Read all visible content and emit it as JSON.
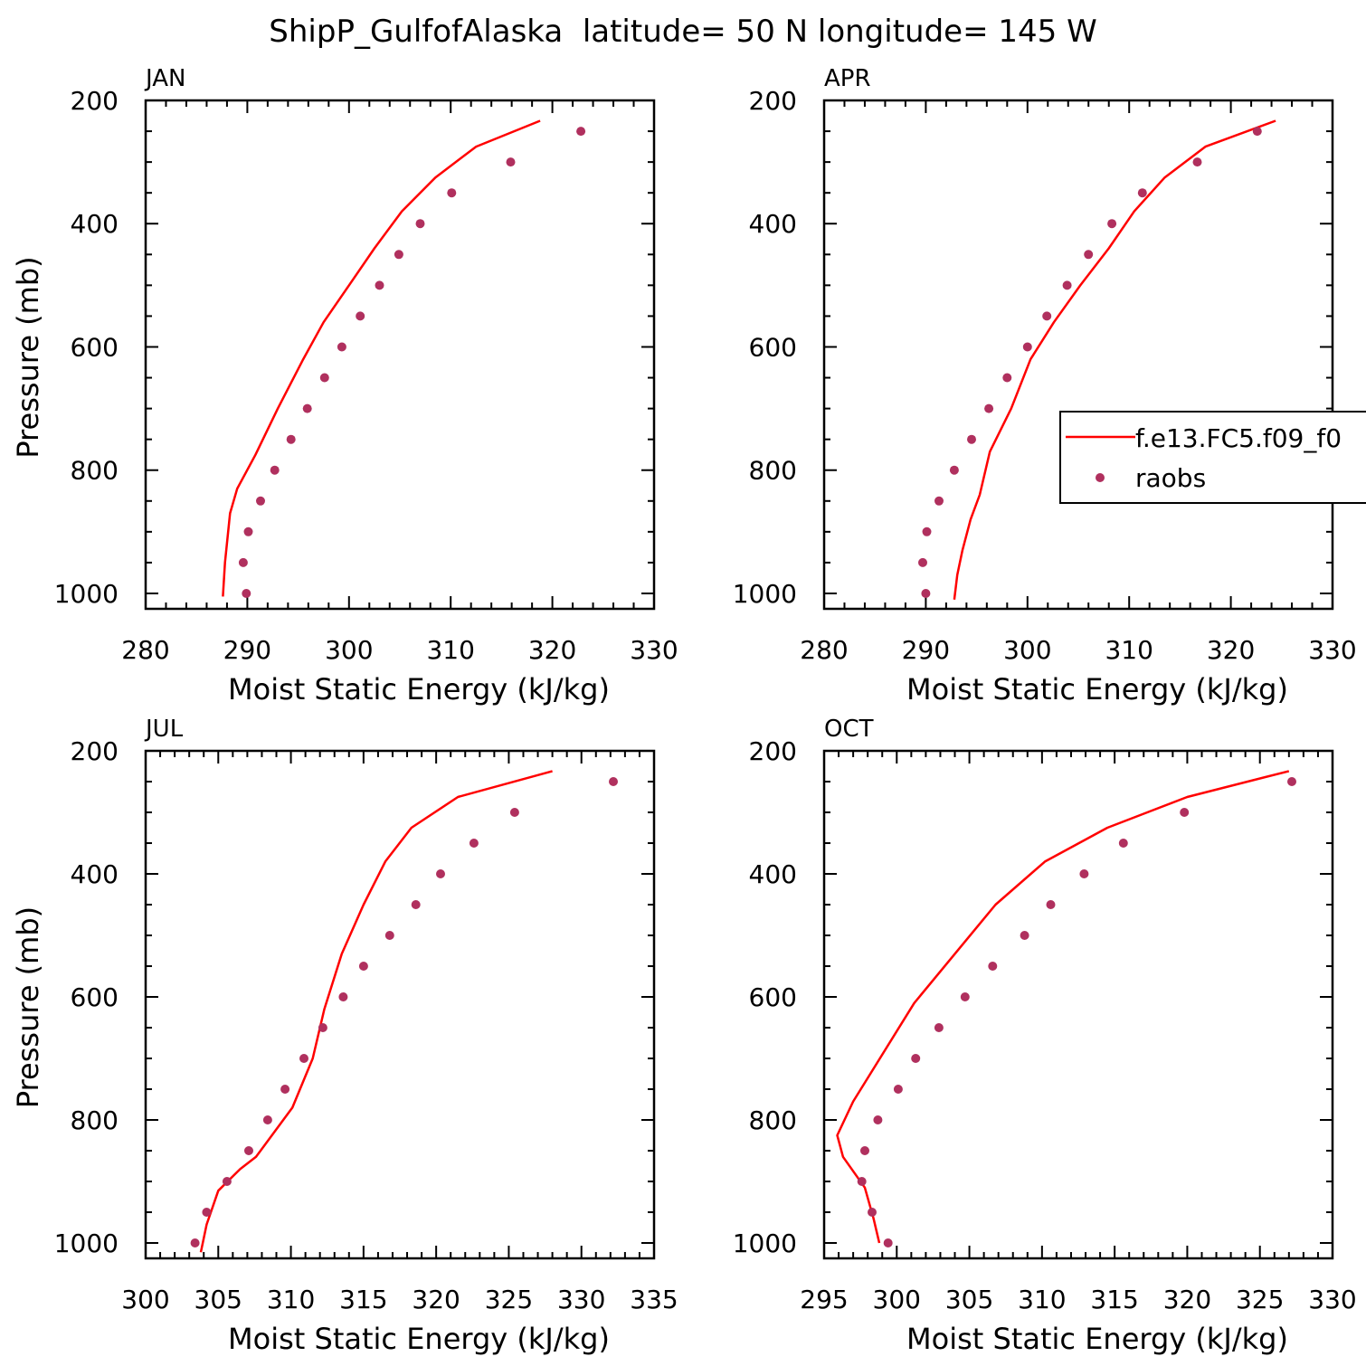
{
  "figure_title": "ShipP_GulfofAlaska  latitude= 50 N longitude= 145 W",
  "colors": {
    "model": "#ff0000",
    "obs": "#b0305e"
  },
  "legend": {
    "placement": "right, overlapping APR panel",
    "model_label": "f.e13.FC5.f09_f0",
    "obs_label": "raobs"
  },
  "chart_data": [
    {
      "type": "line+scatter",
      "panel": "JAN",
      "title": "JAN",
      "xlabel": "Moist Static Energy (kJ/kg)",
      "ylabel": "Pressure (mb)",
      "xlim": [
        280,
        330
      ],
      "ylim": [
        200,
        1025
      ],
      "yreversed": true,
      "xticks": [
        "280",
        "290",
        "300",
        "310",
        "320",
        "330"
      ],
      "yticks": [
        "200",
        "400",
        "600",
        "800",
        "1000"
      ],
      "series": [
        {
          "name": "f.e13.FC5.f09_f0",
          "kind": "line",
          "x": [
            318.8,
            312.5,
            308.5,
            305.2,
            302.5,
            300.0,
            297.5,
            295.5,
            293.0,
            290.8,
            289.0,
            288.3,
            287.8,
            287.6
          ],
          "y": [
            233,
            275,
            325,
            380,
            440,
            500,
            560,
            620,
            700,
            775,
            830,
            870,
            950,
            1005
          ]
        },
        {
          "name": "raobs",
          "kind": "scatter",
          "x": [
            322.8,
            315.9,
            310.1,
            307.0,
            304.9,
            303.0,
            301.1,
            299.3,
            297.6,
            295.9,
            294.3,
            292.7,
            291.3,
            290.1,
            289.6,
            289.9
          ],
          "y": [
            250,
            300,
            350,
            400,
            450,
            500,
            550,
            600,
            650,
            700,
            750,
            800,
            850,
            900,
            950,
            1000
          ]
        }
      ]
    },
    {
      "type": "line+scatter",
      "panel": "APR",
      "title": "APR",
      "xlabel": "Moist Static Energy (kJ/kg)",
      "ylabel": "",
      "xlim": [
        280,
        330
      ],
      "ylim": [
        200,
        1025
      ],
      "yreversed": true,
      "xticks": [
        "280",
        "290",
        "300",
        "310",
        "320",
        "330"
      ],
      "yticks": [
        "200",
        "400",
        "600",
        "800",
        "1000"
      ],
      "series": [
        {
          "name": "f.e13.FC5.f09_f0",
          "kind": "line",
          "x": [
            324.4,
            317.5,
            313.5,
            310.5,
            308.0,
            305.2,
            302.6,
            300.3,
            298.4,
            296.3,
            295.3,
            294.4,
            293.6,
            293.1,
            292.8
          ],
          "y": [
            233,
            275,
            325,
            380,
            440,
            500,
            560,
            620,
            700,
            770,
            840,
            880,
            930,
            970,
            1010
          ]
        },
        {
          "name": "raobs",
          "kind": "scatter",
          "x": [
            322.6,
            316.7,
            311.3,
            308.3,
            306.0,
            303.9,
            301.9,
            300.0,
            298.0,
            296.2,
            294.5,
            292.8,
            291.3,
            290.1,
            289.7,
            290.0
          ],
          "y": [
            250,
            300,
            350,
            400,
            450,
            500,
            550,
            600,
            650,
            700,
            750,
            800,
            850,
            900,
            950,
            1000
          ]
        }
      ]
    },
    {
      "type": "line+scatter",
      "panel": "JUL",
      "title": "JUL",
      "xlabel": "Moist Static Energy (kJ/kg)",
      "ylabel": "Pressure (mb)",
      "xlim": [
        300,
        335
      ],
      "ylim": [
        200,
        1025
      ],
      "yreversed": true,
      "xticks": [
        "300",
        "305",
        "310",
        "315",
        "320",
        "325",
        "330",
        "335"
      ],
      "yticks": [
        "200",
        "400",
        "600",
        "800",
        "1000"
      ],
      "series": [
        {
          "name": "f.e13.FC5.f09_f0",
          "kind": "line",
          "x": [
            328.0,
            321.5,
            318.3,
            316.5,
            315.0,
            313.5,
            312.3,
            311.5,
            310.1,
            307.6,
            306.5,
            305.0,
            304.2,
            303.8
          ],
          "y": [
            233,
            275,
            325,
            380,
            450,
            530,
            620,
            700,
            780,
            860,
            880,
            915,
            970,
            1015
          ]
        },
        {
          "name": "raobs",
          "kind": "scatter",
          "x": [
            332.2,
            325.4,
            322.6,
            320.3,
            318.6,
            316.8,
            315.0,
            313.6,
            312.2,
            310.9,
            309.6,
            308.4,
            307.1,
            305.6,
            304.2,
            303.4
          ],
          "y": [
            250,
            300,
            350,
            400,
            450,
            500,
            550,
            600,
            650,
            700,
            750,
            800,
            850,
            900,
            950,
            1000
          ]
        }
      ]
    },
    {
      "type": "line+scatter",
      "panel": "OCT",
      "title": "OCT",
      "xlabel": "Moist Static Energy (kJ/kg)",
      "ylabel": "",
      "xlim": [
        295,
        330
      ],
      "ylim": [
        200,
        1025
      ],
      "yreversed": true,
      "xticks": [
        "295",
        "300",
        "305",
        "310",
        "315",
        "320",
        "325",
        "330"
      ],
      "yticks": [
        "200",
        "400",
        "600",
        "800",
        "1000"
      ],
      "series": [
        {
          "name": "f.e13.FC5.f09_f0",
          "kind": "line",
          "x": [
            327.0,
            320.0,
            314.5,
            310.2,
            306.8,
            304.0,
            301.2,
            297.0,
            295.9,
            296.3,
            297.8,
            298.4,
            298.8
          ],
          "y": [
            233,
            275,
            325,
            380,
            450,
            530,
            610,
            770,
            825,
            860,
            910,
            960,
            1000
          ]
        },
        {
          "name": "raobs",
          "kind": "scatter",
          "x": [
            327.2,
            319.8,
            315.6,
            312.9,
            310.6,
            308.8,
            306.6,
            304.7,
            302.9,
            301.3,
            300.1,
            298.7,
            297.8,
            297.6,
            298.3,
            299.4
          ],
          "y": [
            250,
            300,
            350,
            400,
            450,
            500,
            550,
            600,
            650,
            700,
            750,
            800,
            850,
            900,
            950,
            1000
          ]
        }
      ]
    }
  ]
}
